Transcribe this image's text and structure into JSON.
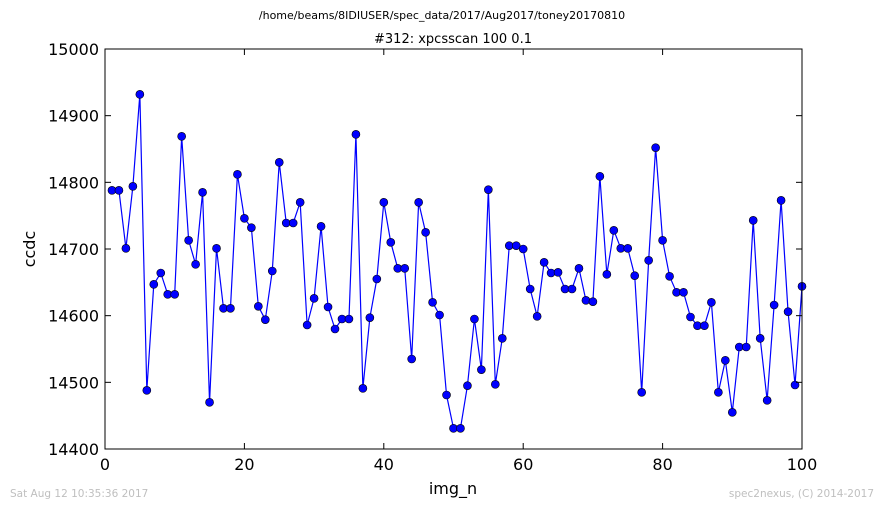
{
  "suptitle": "/home/beams/8IDIUSER/spec_data/2017/Aug2017/toney20170810",
  "footer": {
    "timestamp": "Sat Aug 12 10:35:36 2017",
    "credit": "spec2nexus, (C) 2014-2017"
  },
  "colors": {
    "line": "#0000ff",
    "marker": "#0000ff",
    "marker_edge": "#000000"
  },
  "chart_data": {
    "type": "line",
    "title": "#312: xpcsscan 100 0.1",
    "xlabel": "img_n",
    "ylabel": "ccdc",
    "xlim": [
      0,
      100
    ],
    "ylim": [
      14400,
      15000
    ],
    "xticks": [
      0,
      20,
      40,
      60,
      80,
      100
    ],
    "yticks": [
      14400,
      14500,
      14600,
      14700,
      14800,
      14900,
      15000
    ],
    "grid": false,
    "series": [
      {
        "x": [
          1,
          2,
          3,
          4,
          5,
          6,
          7,
          8,
          9,
          10,
          11,
          12,
          13,
          14,
          15,
          16,
          17,
          18,
          19,
          20,
          21,
          22,
          23,
          24,
          25,
          26,
          27,
          28,
          29,
          30,
          31,
          32,
          33,
          34,
          35,
          36,
          37,
          38,
          39,
          40,
          41,
          42,
          43,
          44,
          45,
          46,
          47,
          48,
          49,
          50,
          51,
          52,
          53,
          54,
          55,
          56,
          57,
          58,
          59,
          60,
          61,
          62,
          63,
          64,
          65,
          66,
          67,
          68,
          69,
          70,
          71,
          72,
          73,
          74,
          75,
          76,
          77,
          78,
          79,
          80,
          81,
          82,
          83,
          84,
          85,
          86,
          87,
          88,
          89,
          90,
          91,
          92,
          93,
          94,
          95,
          96,
          97,
          98,
          99,
          100
        ],
        "y": [
          14788,
          14788,
          14701,
          14794,
          14932,
          14488,
          14647,
          14664,
          14632,
          14632,
          14869,
          14713,
          14677,
          14785,
          14470,
          14701,
          14611,
          14611,
          14812,
          14746,
          14732,
          14614,
          14594,
          14667,
          14830,
          14739,
          14739,
          14770,
          14586,
          14626,
          14734,
          14613,
          14580,
          14595,
          14595,
          14872,
          14491,
          14597,
          14655,
          14770,
          14710,
          14671,
          14671,
          14535,
          14770,
          14725,
          14620,
          14601,
          14481,
          14431,
          14431,
          14495,
          14595,
          14519,
          14789,
          14497,
          14566,
          14705,
          14705,
          14700,
          14640,
          14599,
          14680,
          14664,
          14665,
          14640,
          14640,
          14671,
          14623,
          14621,
          14809,
          14662,
          14728,
          14701,
          14701,
          14660,
          14485,
          14683,
          14852,
          14713,
          14659,
          14635,
          14635,
          14598,
          14585,
          14585,
          14620,
          14485,
          14533,
          14455,
          14553,
          14553,
          14743,
          14566,
          14473,
          14616,
          14773,
          14606,
          14496,
          14644
        ]
      }
    ]
  }
}
